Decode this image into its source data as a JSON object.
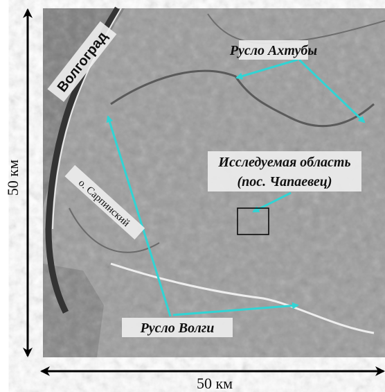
{
  "scale": {
    "vertical": "50 км",
    "horizontal": "50 км"
  },
  "labels": {
    "city": "Волгоград",
    "akhtuba": "Русло Ахтубы",
    "study_area": "Исследуемая область",
    "study_area_note": "(пос. Чапаевец)",
    "island": "о. Сарпинский",
    "volga": "Русло Волги"
  }
}
